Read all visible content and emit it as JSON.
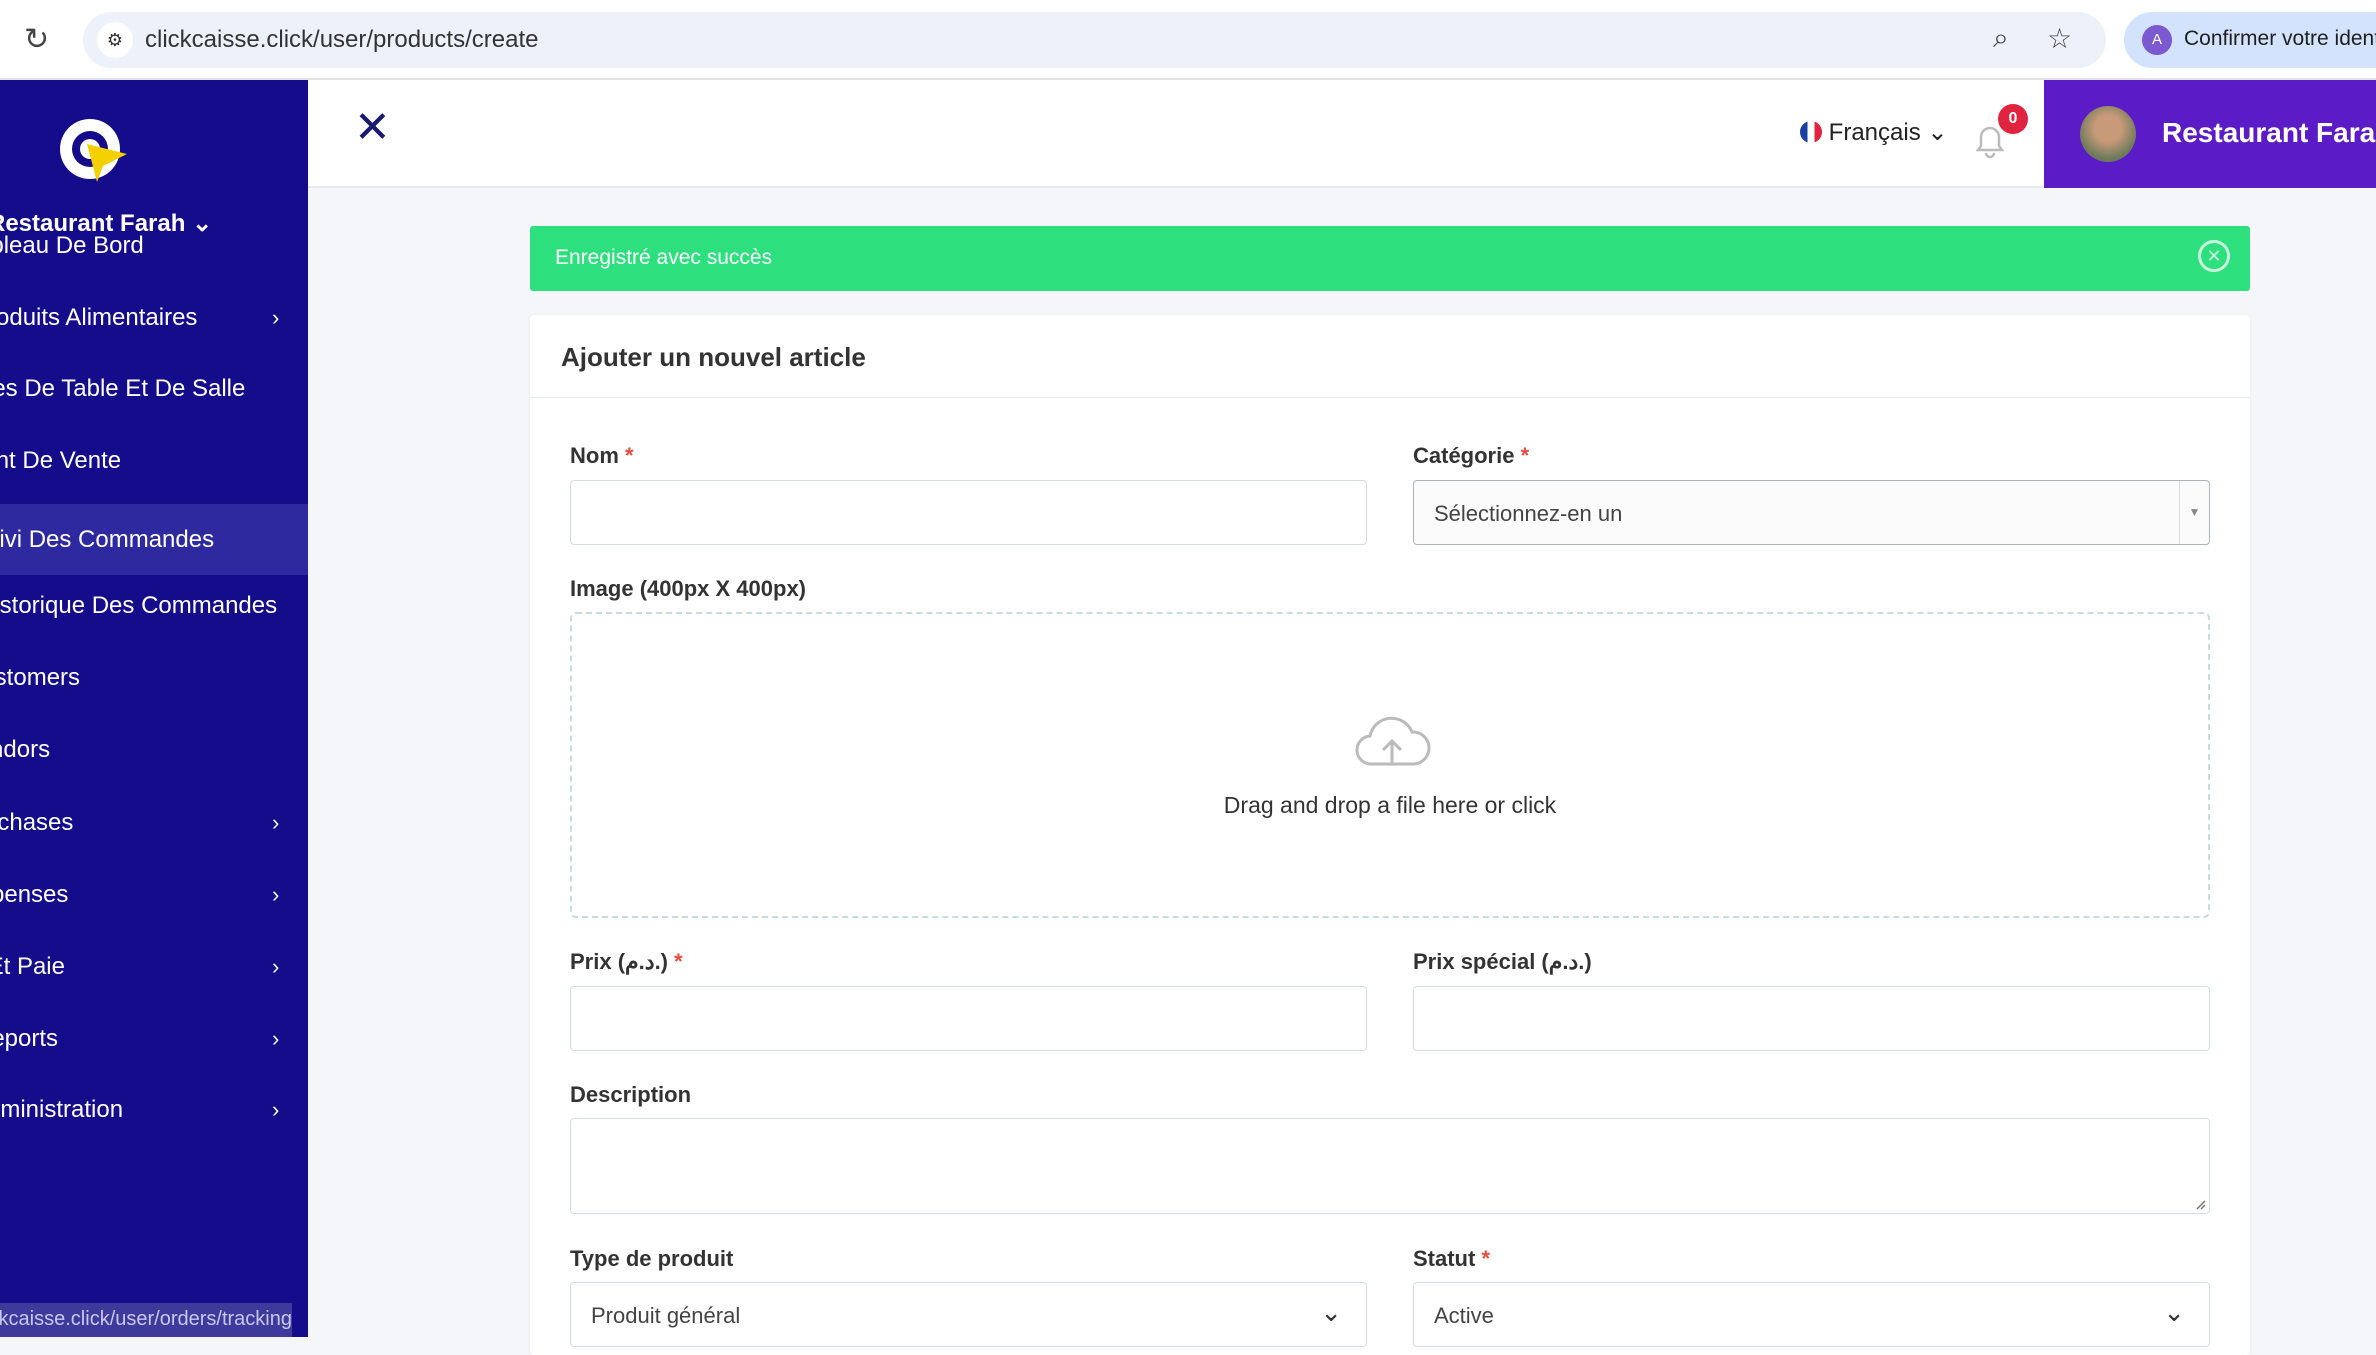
{
  "browser": {
    "url": "clickcaisse.click/user/products/create",
    "identity_label": "Confirmer votre identité",
    "identity_avatar": "A"
  },
  "sidebar": {
    "store_name": "Restaurant Farah",
    "items": [
      {
        "label": "Tableau De Bord",
        "chevron": false
      },
      {
        "label": "Produits Alimentaires",
        "chevron": true
      },
      {
        "label": "Articles De Table Et De Salle",
        "chevron": false
      },
      {
        "label": "Point De Vente",
        "chevron": false
      },
      {
        "label": "Suivi Des Commandes",
        "chevron": false,
        "active": true
      },
      {
        "label": "Historique Des Commandes",
        "chevron": false
      },
      {
        "label": "Customers",
        "chevron": false
      },
      {
        "label": "Vendors",
        "chevron": false
      },
      {
        "label": "Purchases",
        "chevron": true
      },
      {
        "label": "Expenses",
        "chevron": true
      },
      {
        "label": "Staff Et Paie",
        "chevron": true
      },
      {
        "label": "Reports",
        "chevron": true
      },
      {
        "label": "Administration",
        "chevron": true
      }
    ],
    "status_url": "clickcaisse.click/user/orders/tracking"
  },
  "header": {
    "language": "Français",
    "notification_count": "0",
    "user_name": "Restaurant Farah"
  },
  "alert": {
    "message": "Enregistré avec succès"
  },
  "form": {
    "title": "Ajouter un nouvel article",
    "name_label": "Nom",
    "name_value": "",
    "category_label": "Catégorie",
    "category_value": "Sélectionnez-en un",
    "image_label": "Image (400px X 400px)",
    "dropzone_text": "Drag and drop a file here or click",
    "price_label": "Prix (د.م.)",
    "special_price_label": "Prix spécial (د.م.)",
    "description_label": "Description",
    "type_label": "Type de produit",
    "type_value": "Produit général",
    "status_label": "Statut",
    "status_value": "Active",
    "required_mark": "*"
  },
  "colors": {
    "sidebar": "#140c8a",
    "user_box": "#5b1cc7",
    "alert": "#2edf7e",
    "badge": "#e0243f"
  }
}
